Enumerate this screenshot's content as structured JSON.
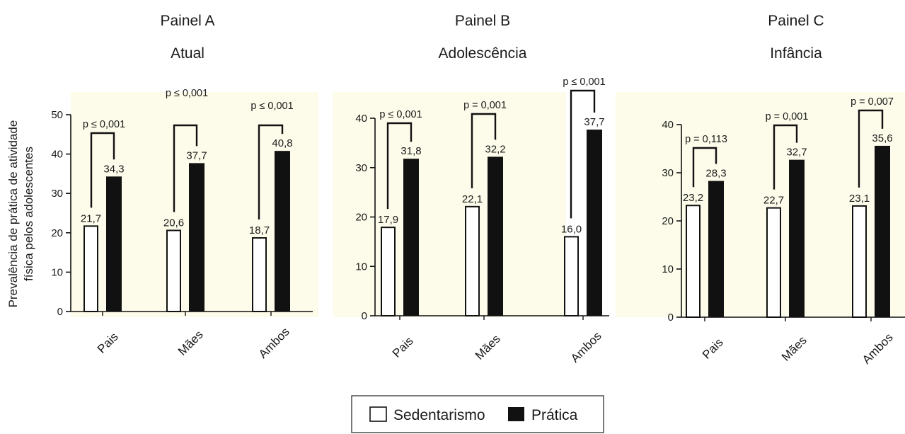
{
  "figure": {
    "ylabel_line1": "Prevalência de prática de atividade",
    "ylabel_line2": "física pelos adolescentes",
    "legend": [
      "Sedentarismo",
      "Prática"
    ],
    "colors": {
      "panel_bg": "#fdfcea",
      "sedentarismo": "#ffffff",
      "pratica": "#111111"
    }
  },
  "chart_data": [
    {
      "type": "bar",
      "title": "Painel A",
      "subtitle": "Atual",
      "categories": [
        "Pais",
        "Mães",
        "Ambos"
      ],
      "series": [
        {
          "name": "Sedentarismo",
          "values": [
            21.7,
            20.6,
            18.7
          ],
          "labels": [
            "21,7",
            "20,6",
            "18,7"
          ]
        },
        {
          "name": "Prática",
          "values": [
            34.3,
            37.7,
            40.8
          ],
          "labels": [
            "34,3",
            "37,7",
            "40,8"
          ]
        }
      ],
      "annotations": [
        "p ≤ 0,001",
        "p ≤ 0,001",
        "p ≤ 0,001"
      ],
      "ylim": [
        0,
        50
      ],
      "yticks": [
        0,
        10,
        20,
        30,
        40,
        50
      ]
    },
    {
      "type": "bar",
      "title": "Painel B",
      "subtitle": "Adolescência",
      "categories": [
        "Pais",
        "Mães",
        "Ambos"
      ],
      "series": [
        {
          "name": "Sedentarismo",
          "values": [
            17.9,
            22.1,
            16.0
          ],
          "labels": [
            "17,9",
            "22,1",
            "16,0"
          ]
        },
        {
          "name": "Prática",
          "values": [
            31.8,
            32.2,
            37.7
          ],
          "labels": [
            "31,8",
            "32,2",
            "37,7"
          ]
        }
      ],
      "annotations": [
        "p ≤ 0,001",
        "p = 0,001",
        "p ≤ 0,001"
      ],
      "ylim": [
        0,
        40
      ],
      "yticks": [
        0,
        10,
        20,
        30,
        40
      ]
    },
    {
      "type": "bar",
      "title": "Painel C",
      "subtitle": "Infância",
      "categories": [
        "Pais",
        "Mães",
        "Ambos"
      ],
      "series": [
        {
          "name": "Sedentarismo",
          "values": [
            23.2,
            22.7,
            23.1
          ],
          "labels": [
            "23,2",
            "22,7",
            "23,1"
          ]
        },
        {
          "name": "Prática",
          "values": [
            28.3,
            32.7,
            35.6
          ],
          "labels": [
            "28,3",
            "32,7",
            "35,6"
          ]
        }
      ],
      "annotations": [
        "p = 0,113",
        "p = 0,001",
        "p = 0,007"
      ],
      "ylim": [
        0,
        40
      ],
      "yticks": [
        0,
        10,
        20,
        30,
        40
      ]
    }
  ]
}
